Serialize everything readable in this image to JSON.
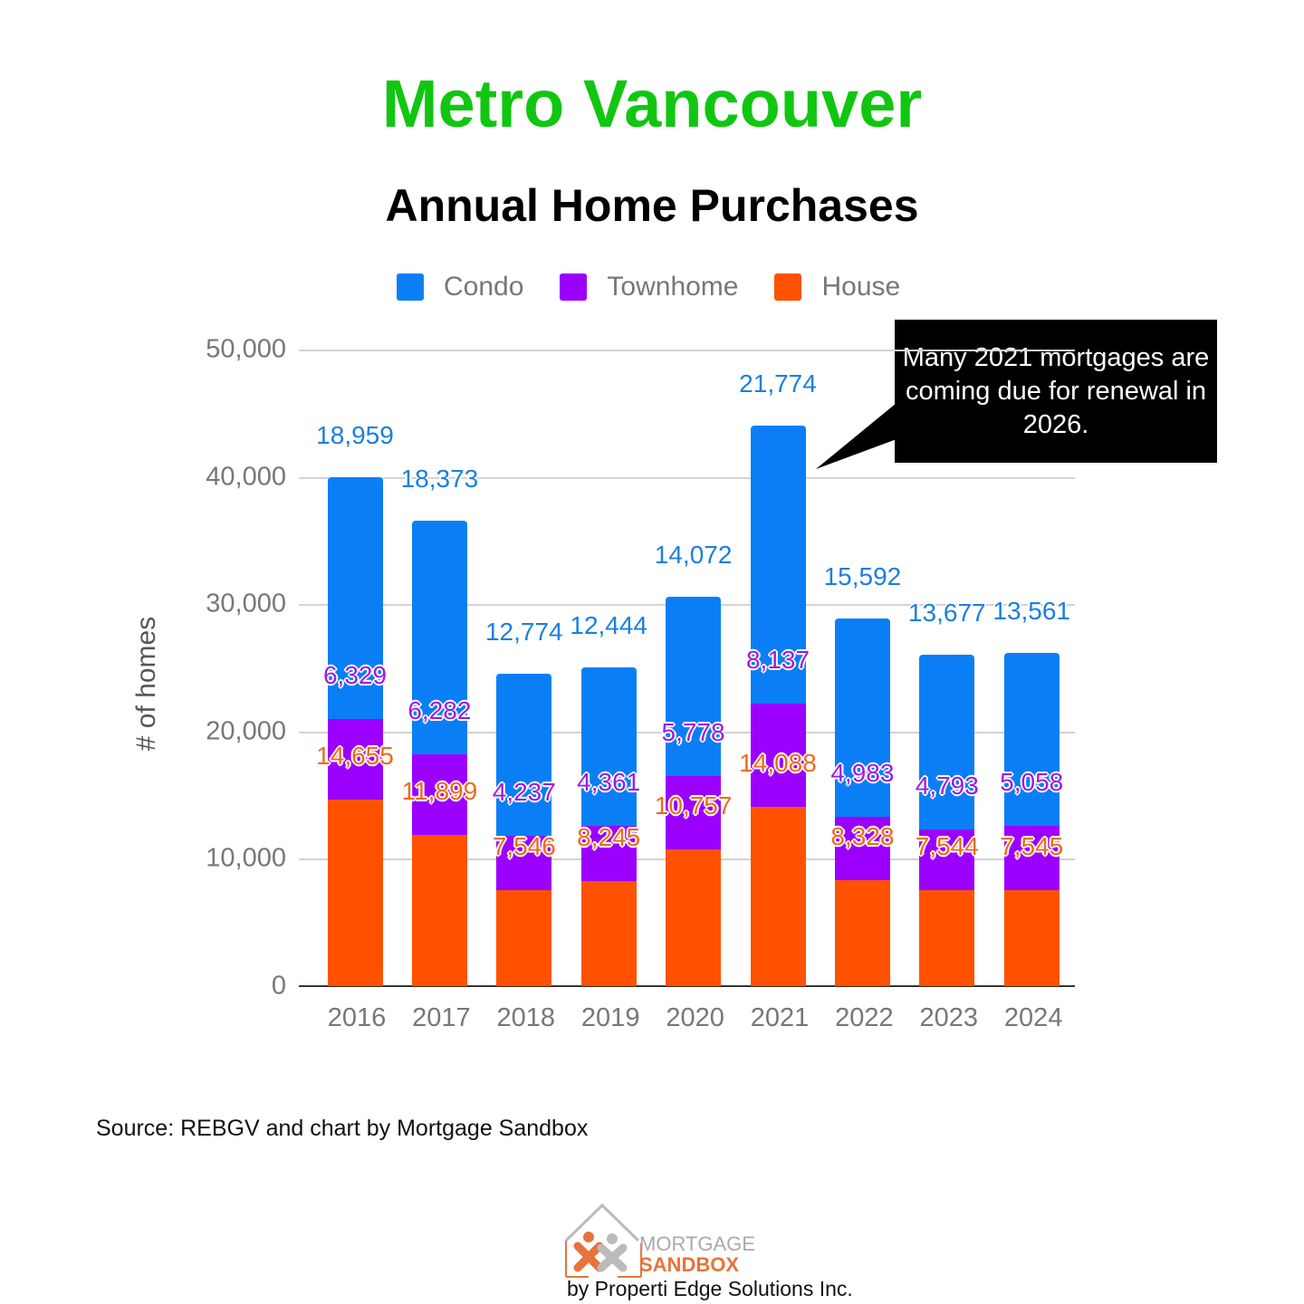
{
  "header": {
    "title": "Metro Vancouver",
    "subtitle": "Annual Home Purchases"
  },
  "legend": [
    {
      "label": "Condo",
      "color": "#0a7ff5"
    },
    {
      "label": "Townhome",
      "color": "#9b00ff"
    },
    {
      "label": "House",
      "color": "#ff5100"
    }
  ],
  "axis": {
    "ylabel": "# of homes",
    "yticks": [
      "50,000",
      "40,000",
      "30,000",
      "20,000",
      "10,000",
      "0"
    ]
  },
  "callout": {
    "text": "Many 2021 mortgages are coming due for renewal in 2026."
  },
  "footer": {
    "source": "Source: REBGV and chart by Mortgage Sandbox",
    "logo_line1": "MORTGAGE",
    "logo_line2": "SANDBOX",
    "logo_tagline": "by Properti Edge Solutions Inc."
  },
  "colors": {
    "title": "#11c611",
    "condo": "#0a7ff5",
    "townhome": "#9b00ff",
    "house": "#ff5100",
    "condo_label": "#1a7fe0",
    "townhome_label": "#9b1ee0",
    "house_label": "#f06a1a"
  },
  "chart_data": {
    "type": "bar",
    "stacked": true,
    "title": "Metro Vancouver",
    "subtitle": "Annual Home Purchases",
    "xlabel": "",
    "ylabel": "# of homes",
    "ylim": [
      0,
      50000
    ],
    "yticks": [
      0,
      10000,
      20000,
      30000,
      40000,
      50000
    ],
    "grid": true,
    "legend_position": "top",
    "categories": [
      "2016",
      "2017",
      "2018",
      "2019",
      "2020",
      "2021",
      "2022",
      "2023",
      "2024"
    ],
    "series": [
      {
        "name": "House",
        "color": "#ff5100",
        "values": [
          14655,
          11899,
          7546,
          8245,
          10757,
          14088,
          8328,
          7544,
          7545
        ]
      },
      {
        "name": "Townhome",
        "color": "#9b00ff",
        "values": [
          6329,
          6282,
          4237,
          4361,
          5778,
          8137,
          4983,
          4793,
          5058
        ]
      },
      {
        "name": "Condo",
        "color": "#0a7ff5",
        "values": [
          18959,
          18373,
          12774,
          12444,
          14072,
          21774,
          15592,
          13677,
          13561
        ]
      }
    ],
    "labels": {
      "House": [
        "14,655",
        "11,899",
        "7,546",
        "8,245",
        "10,757",
        "14,088",
        "8,328",
        "7,544",
        "7,545"
      ],
      "Townhome": [
        "6,329",
        "6,282",
        "4,237",
        "4,361",
        "5,778",
        "8,137",
        "4,983",
        "4,793",
        "5,058"
      ],
      "Condo": [
        "18,959",
        "18,373",
        "12,774",
        "12,444",
        "14,072",
        "21,774",
        "15,592",
        "13,677",
        "13,561"
      ]
    },
    "annotations": [
      "Many 2021 mortgages are coming due for renewal in 2026."
    ]
  }
}
